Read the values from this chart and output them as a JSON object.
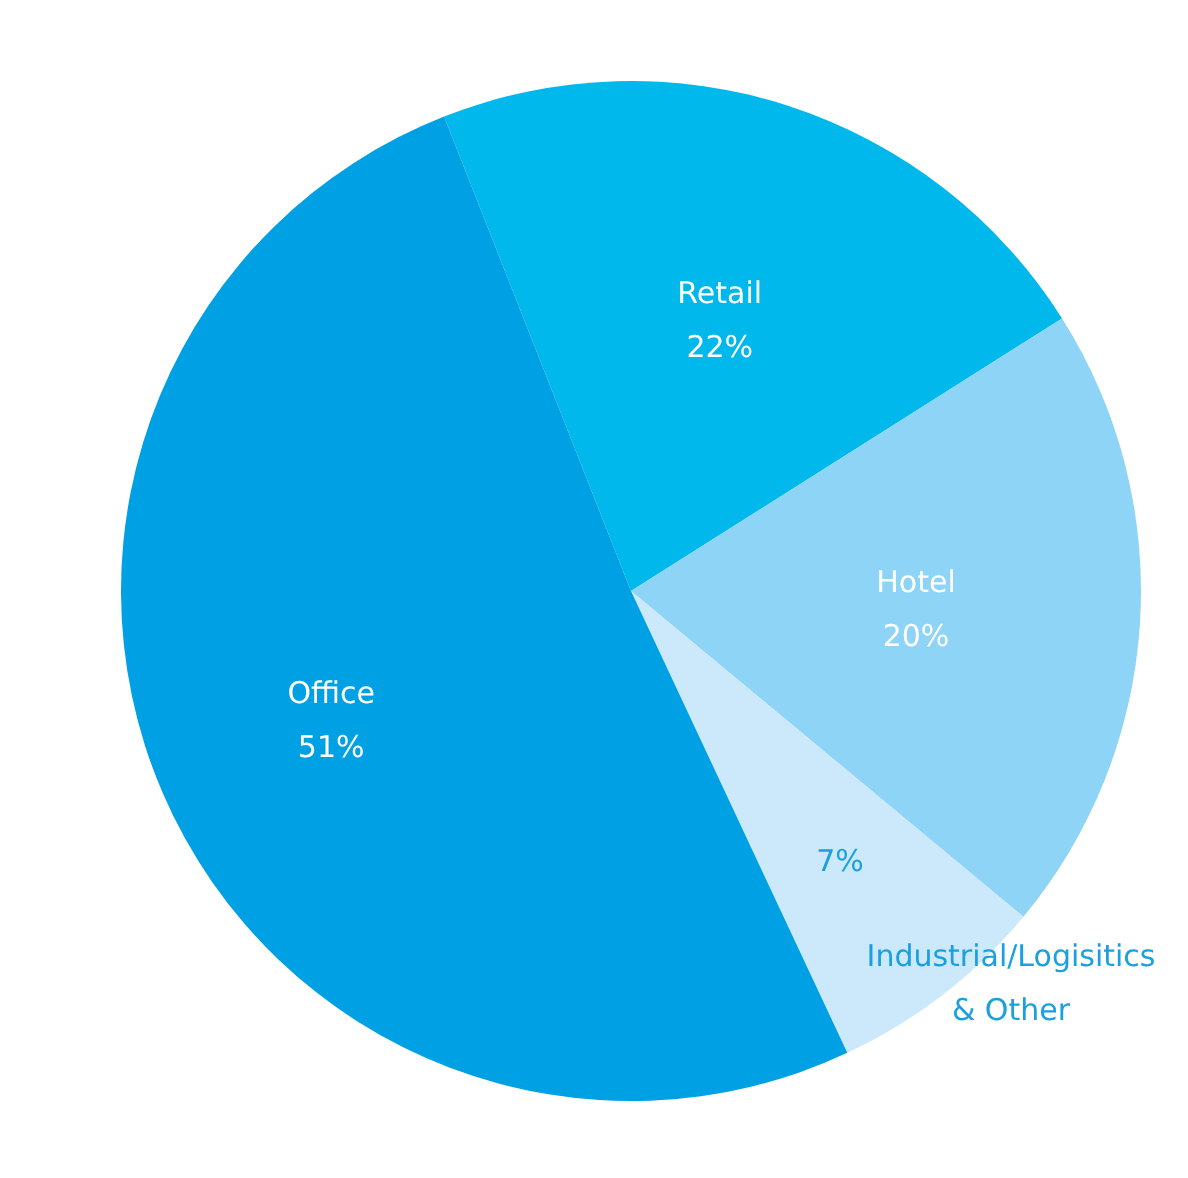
{
  "chart_data": {
    "type": "pie",
    "categories": [
      "Retail",
      "Hotel",
      "Industrial/Logisitics\n& Other",
      "Office"
    ],
    "values": [
      22,
      20,
      7,
      51
    ],
    "value_labels": [
      "22%",
      "20%",
      "7%",
      "51%"
    ],
    "colors": [
      "#00b8ec",
      "#8ed4f6",
      "#cbe9fb",
      "#00a0e4"
    ]
  }
}
